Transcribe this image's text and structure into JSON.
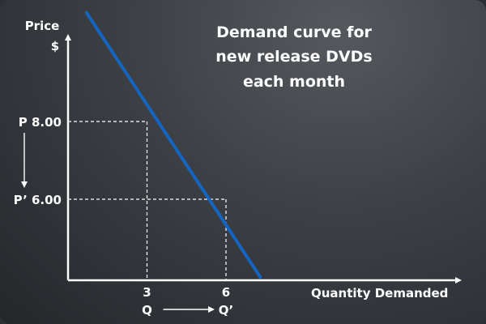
{
  "chart_data": {
    "type": "line",
    "title_lines": [
      "Demand curve for",
      "new release DVDs",
      "each month"
    ],
    "ylabel_lines": [
      "Price",
      "$"
    ],
    "xlabel": "Quantity Demanded",
    "series": [
      {
        "x": [
          0.7,
          7.3
        ],
        "y": [
          10.8,
          4.0
        ]
      }
    ],
    "points": [
      {
        "x": 3,
        "y": 8.0,
        "y_label": "P 8.00",
        "x_label": "3",
        "x_name": "Q"
      },
      {
        "x": 6,
        "y": 6.0,
        "y_label": "P’ 6.00",
        "x_label": "6",
        "x_name": "Q’"
      }
    ],
    "colors": {
      "curve": "#1565c0",
      "axes": "#ffffff",
      "guides": "#ffffff"
    }
  }
}
